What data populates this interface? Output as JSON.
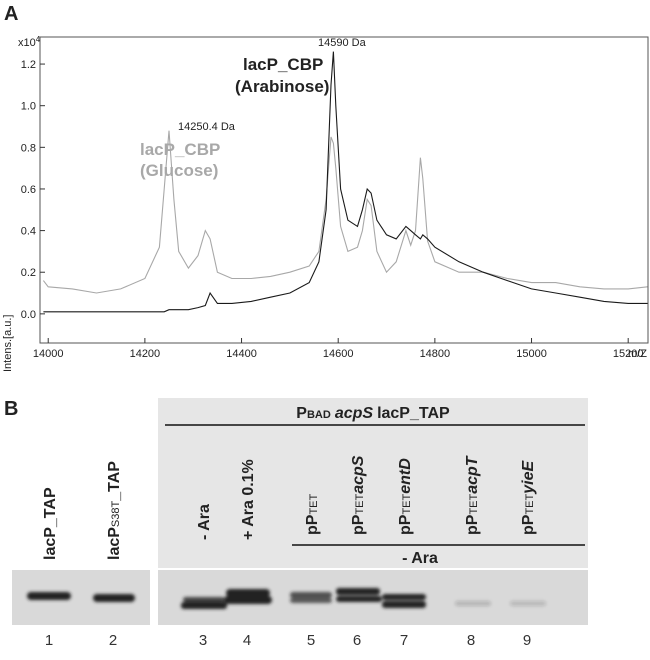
{
  "chart_data": {
    "type": "line",
    "panel": "A",
    "y_label": "Intens.[a.u.]",
    "x_label": "m/Z",
    "multiplier": "x10",
    "multiplier_exp": "4",
    "xlim": [
      13983,
      15241
    ],
    "ylim": [
      -0.14,
      1.33
    ],
    "xticks": [
      14000,
      14200,
      14400,
      14600,
      14800,
      15000,
      15200
    ],
    "yticks": [
      {
        "value": 0,
        "label": "0.0"
      },
      0.2,
      0.4,
      0.6,
      0.8,
      {
        "value": 1,
        "label": "1.0"
      },
      1.2
    ],
    "x": [
      13990,
      14000,
      14050,
      14100,
      14150,
      14200,
      14230,
      14240,
      14250,
      14260,
      14270,
      14290,
      14310,
      14325,
      14335,
      14350,
      14380,
      14420,
      14460,
      14500,
      14540,
      14560,
      14575,
      14585,
      14590,
      14595,
      14605,
      14620,
      14640,
      14650,
      14660,
      14668,
      14680,
      14700,
      14720,
      14740,
      14750,
      14760,
      14770,
      14775,
      14785,
      14800,
      14850,
      14900,
      14950,
      15000,
      15050,
      15100,
      15150,
      15200,
      15240
    ],
    "series": [
      {
        "name": "lacP_CBP",
        "condition": "(Glucose)",
        "peak_label": "14250.4 Da",
        "color": "#a8a8a8",
        "values": [
          0.16,
          0.13,
          0.12,
          0.1,
          0.12,
          0.17,
          0.32,
          0.6,
          0.88,
          0.55,
          0.3,
          0.22,
          0.28,
          0.4,
          0.36,
          0.2,
          0.17,
          0.17,
          0.18,
          0.2,
          0.23,
          0.3,
          0.55,
          0.85,
          0.82,
          0.7,
          0.42,
          0.3,
          0.32,
          0.4,
          0.55,
          0.52,
          0.3,
          0.2,
          0.25,
          0.4,
          0.33,
          0.4,
          0.75,
          0.65,
          0.35,
          0.25,
          0.2,
          0.2,
          0.17,
          0.15,
          0.15,
          0.13,
          0.12,
          0.12,
          0.13
        ]
      },
      {
        "name": "lacP_CBP",
        "condition": "(Arabinose)",
        "peak_label": "14590 Da",
        "color": "#1a1a1a",
        "values": [
          0.01,
          0.01,
          0.01,
          0.01,
          0.01,
          0.01,
          0.01,
          0.01,
          0.02,
          0.02,
          0.02,
          0.02,
          0.03,
          0.04,
          0.1,
          0.05,
          0.05,
          0.06,
          0.08,
          0.1,
          0.15,
          0.25,
          0.5,
          1.1,
          1.26,
          1.0,
          0.6,
          0.45,
          0.42,
          0.5,
          0.6,
          0.58,
          0.45,
          0.38,
          0.36,
          0.42,
          0.4,
          0.38,
          0.36,
          0.38,
          0.36,
          0.32,
          0.25,
          0.2,
          0.16,
          0.12,
          0.1,
          0.08,
          0.06,
          0.05,
          0.05
        ]
      }
    ]
  },
  "blot": {
    "panel": "B",
    "header": {
      "prefix": "P",
      "sub": "BAD",
      "gene": "acpS",
      "suffix": "lacP_TAP"
    },
    "group_label": "- Ara",
    "lanes": [
      {
        "number": "1",
        "prefix": "lacP_TAP"
      },
      {
        "number": "2",
        "prefix": "lacP",
        "sub": "S38T",
        "suffix": "_TAP"
      },
      {
        "number": "3",
        "prefix": "- Ara"
      },
      {
        "number": "4",
        "prefix": "+ Ara 0.1%"
      },
      {
        "number": "5",
        "prefix": "pP",
        "sub": "TET"
      },
      {
        "number": "6",
        "prefix": "pP",
        "sub": "TET",
        "gene": "acpS"
      },
      {
        "number": "7",
        "prefix": "pP",
        "sub": "TET",
        "gene": "entD"
      },
      {
        "number": "8",
        "prefix": "pP",
        "sub": "TET",
        "gene": "acpT"
      },
      {
        "number": "9",
        "prefix": "pP",
        "sub": "TET",
        "gene": "yieE"
      }
    ]
  }
}
